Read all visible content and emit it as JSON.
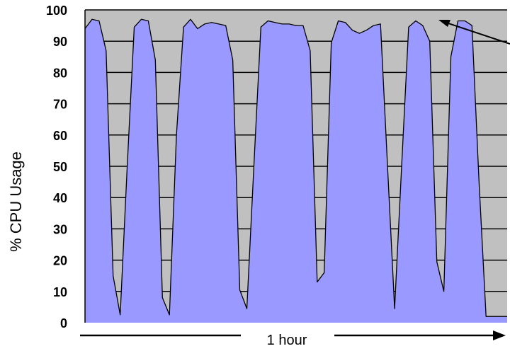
{
  "chart_data": {
    "type": "area",
    "title": "",
    "xlabel": "1 hour",
    "ylabel": "% CPU Usage",
    "ylim": [
      0,
      100
    ],
    "yticks": [
      0,
      10,
      20,
      30,
      40,
      50,
      60,
      70,
      80,
      90,
      100
    ],
    "grid": true,
    "x": [
      0,
      1,
      2,
      3,
      4,
      5,
      6,
      7,
      8,
      9,
      10,
      11,
      12,
      13,
      14,
      15,
      16,
      17,
      18,
      19,
      20,
      21,
      22,
      23,
      24,
      25,
      26,
      27,
      28,
      29,
      30,
      31,
      32,
      33,
      34,
      35,
      36,
      37,
      38,
      39,
      40,
      41,
      42,
      43,
      44,
      45,
      46,
      47,
      48,
      49,
      50,
      51,
      52,
      53,
      54,
      55,
      56,
      57,
      58,
      59,
      60
    ],
    "series": [
      {
        "values": [
          94,
          97,
          96.5,
          87,
          15,
          2.5,
          50,
          94.5,
          97,
          96.5,
          84,
          8,
          2.5,
          60,
          94.5,
          97,
          94,
          95.5,
          96,
          95.5,
          95,
          84,
          10.5,
          4.5,
          50,
          94.5,
          96.5,
          96,
          95.5,
          95.5,
          95,
          95,
          87,
          13,
          16,
          89.5,
          96.5,
          96,
          93.5,
          92.5,
          93.5,
          95,
          95.5,
          50,
          4.5,
          50,
          94.5,
          96.5,
          95,
          90,
          19.5,
          10,
          85,
          96.5,
          96.5,
          95,
          45,
          2,
          2,
          2,
          2
        ]
      }
    ],
    "colors": {
      "fill": "#9999FF",
      "plot_bg": "#C0C0C0",
      "line": "#000000"
    }
  }
}
